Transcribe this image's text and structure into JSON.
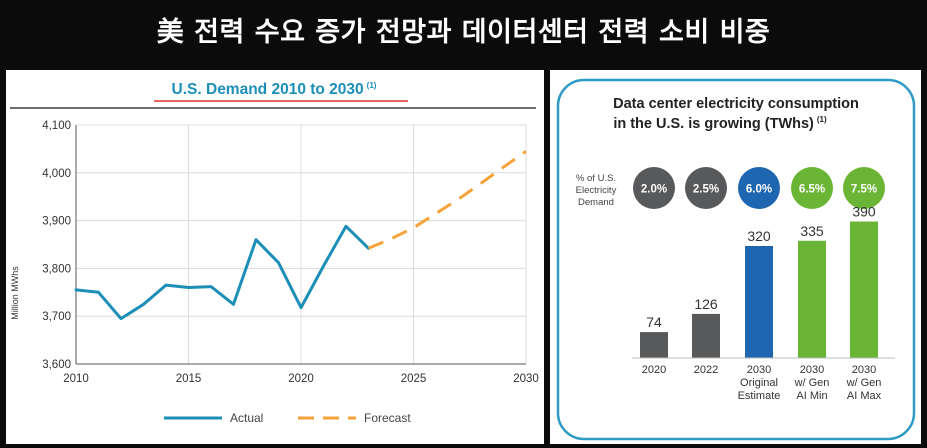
{
  "banner": {
    "title": "美 전력 수요 증가 전망과 데이터센터 전력 소비 비중"
  },
  "chart_data": [
    {
      "type": "line",
      "title": "U.S. Demand 2010 to 2030",
      "title_note": "(1)",
      "ylabel": "Million MWhs",
      "xlabel": "",
      "xlim": [
        2010,
        2030
      ],
      "ylim": [
        3600,
        4100
      ],
      "x_ticks": [
        "2010",
        "2015",
        "2020",
        "2025",
        "2030"
      ],
      "y_ticks": [
        "3,600",
        "3,700",
        "3,800",
        "3,900",
        "4,000",
        "4,100"
      ],
      "grid": true,
      "legend_position": "bottom",
      "series": [
        {
          "name": "Actual",
          "color": "#1c8fb8",
          "style": "solid",
          "x": [
            2010,
            2011,
            2012,
            2013,
            2014,
            2015,
            2016,
            2017,
            2018,
            2019,
            2020,
            2021,
            2022,
            2023
          ],
          "y": [
            3755,
            3750,
            3695,
            3725,
            3765,
            3760,
            3762,
            3725,
            3860,
            3812,
            3718,
            3805,
            3888,
            3842
          ]
        },
        {
          "name": "Forecast",
          "color": "#f5a23b",
          "style": "dashed",
          "x": [
            2023,
            2024,
            2025,
            2026,
            2027,
            2028,
            2029,
            2030
          ],
          "y": [
            3842,
            3862,
            3885,
            3915,
            3945,
            3978,
            4012,
            4045
          ]
        }
      ]
    },
    {
      "type": "bar",
      "title": "Data center electricity consumption in the U.S. is growing (TWhs)",
      "title_lines": [
        "Data center electricity consumption",
        "in the U.S. is growing (TWhs)"
      ],
      "title_note": "(1)",
      "row_label_lines": [
        "% of U.S.",
        "Electricity",
        "Demand"
      ],
      "categories": [
        "2020",
        "2022",
        "2030 Original Estimate",
        "2030 w/ Gen AI Min",
        "2030 w/ Gen AI Max"
      ],
      "category_lines": [
        [
          "2020"
        ],
        [
          "2022"
        ],
        [
          "2030",
          "Original",
          "Estimate"
        ],
        [
          "2030",
          "w/ Gen",
          "AI Min"
        ],
        [
          "2030",
          "w/ Gen",
          "AI Max"
        ]
      ],
      "values": [
        74,
        126,
        320,
        335,
        390
      ],
      "value_labels": [
        "74",
        "126",
        "320",
        "335",
        "390"
      ],
      "percent_of_demand": [
        "2.0%",
        "2.5%",
        "6.0%",
        "6.5%",
        "7.5%"
      ],
      "bar_colors": [
        "#58595b",
        "#58595b",
        "#1f66b0",
        "#6bb536",
        "#6bb536"
      ],
      "ylim": [
        0,
        400
      ]
    }
  ]
}
